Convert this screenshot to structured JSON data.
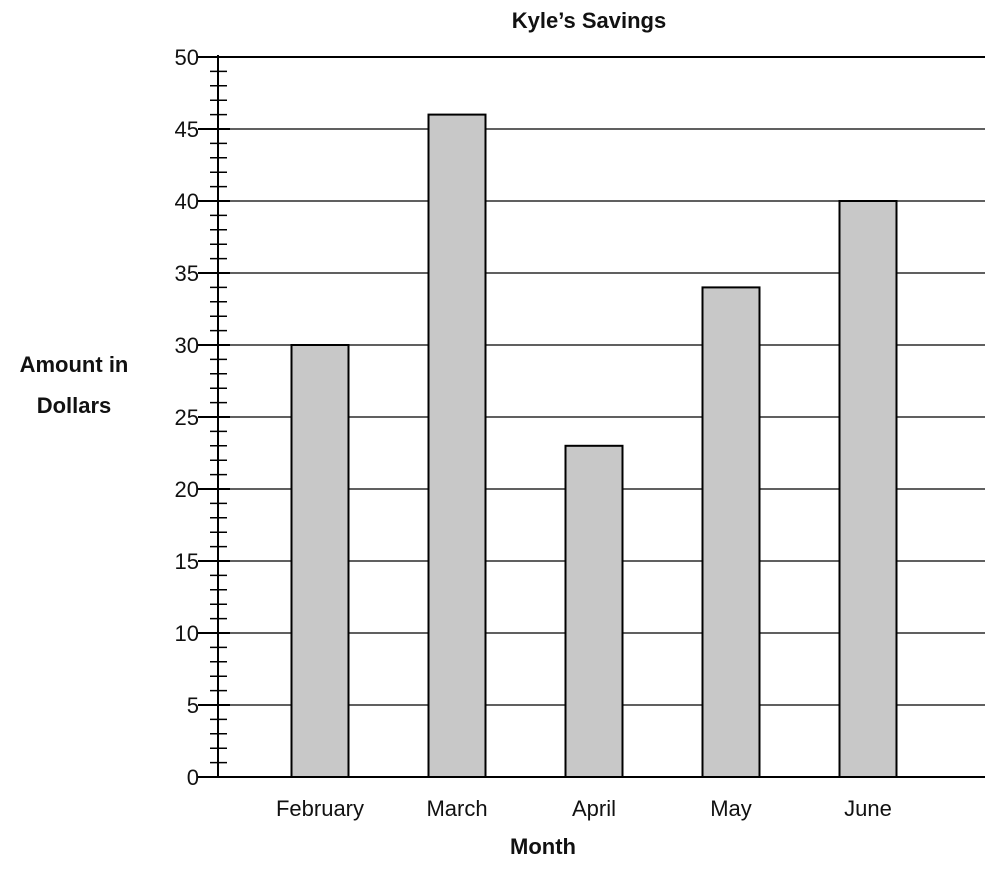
{
  "chart_data": {
    "type": "bar",
    "title": "Kyle’s Savings",
    "xlabel": "Month",
    "ylabel_lines": [
      "Amount in",
      "Dollars"
    ],
    "categories": [
      "February",
      "March",
      "April",
      "May",
      "June"
    ],
    "values": [
      30,
      46,
      23,
      34,
      40
    ],
    "ylim": [
      0,
      50
    ],
    "major_ticks": [
      0,
      5,
      10,
      15,
      20,
      25,
      30,
      35,
      40,
      45,
      50
    ],
    "minor_tick_step": 1,
    "grid": true,
    "bar_color": "#c8c8c8",
    "bar_edge_color": "#000000"
  }
}
